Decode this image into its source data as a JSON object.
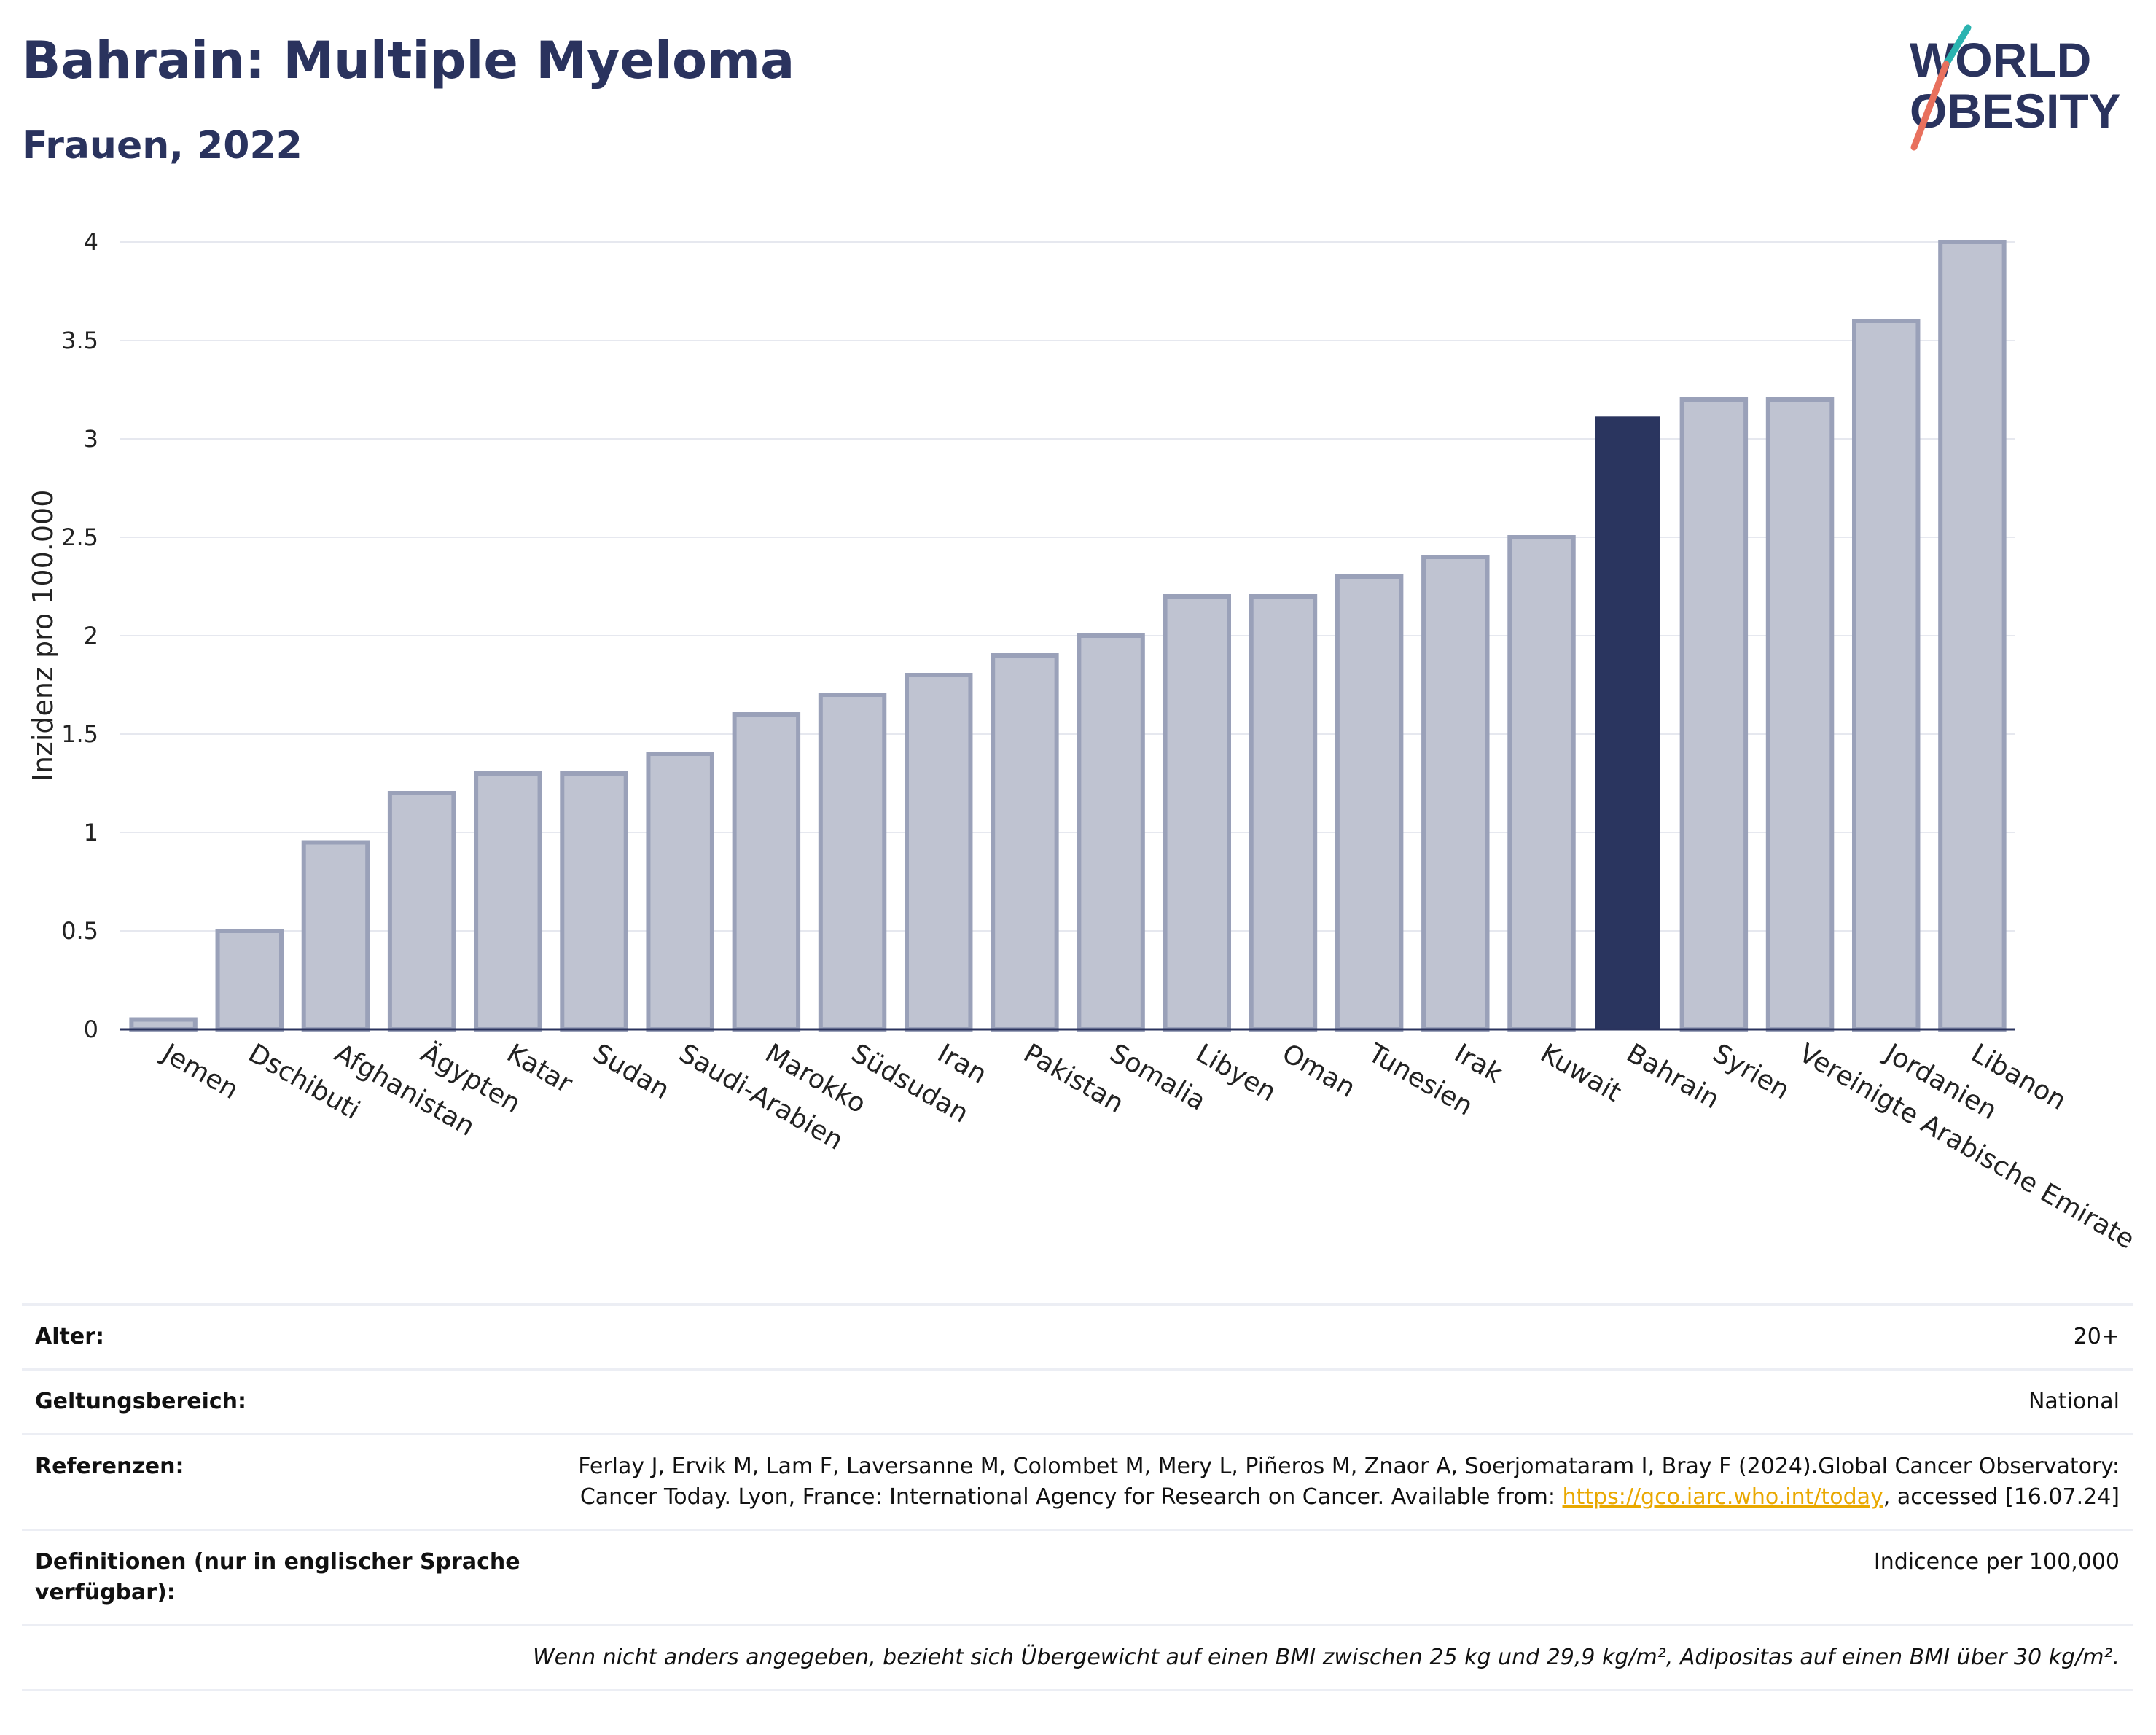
{
  "header": {
    "title": "Bahrain: Multiple Myeloma",
    "subtitle": "Frauen, 2022"
  },
  "logo": {
    "line1": "WORLD",
    "line2": "OBESITY"
  },
  "chart_data": {
    "type": "bar",
    "ylabel": "Inzidenz pro 100.000",
    "ylim": [
      0,
      4
    ],
    "yticks": [
      0,
      0.5,
      1,
      1.5,
      2,
      2.5,
      3,
      3.5,
      4
    ],
    "yticklabels": [
      "0",
      "0.5",
      "1",
      "1.5",
      "2",
      "2.5",
      "3",
      "3.5",
      "4"
    ],
    "grid": true,
    "categories": [
      "Jemen",
      "Dschibuti",
      "Afghanistan",
      "Ägypten",
      "Katar",
      "Sudan",
      "Saudi-Arabien",
      "Marokko",
      "Südsudan",
      "Iran",
      "Pakistan",
      "Somalia",
      "Libyen",
      "Oman",
      "Tunesien",
      "Irak",
      "Kuwait",
      "Bahrain",
      "Syrien",
      "Vereinigte Arabische Emirate",
      "Jordanien",
      "Libanon"
    ],
    "values": [
      0.05,
      0.5,
      0.95,
      1.2,
      1.3,
      1.3,
      1.4,
      1.6,
      1.7,
      1.8,
      1.9,
      2.0,
      2.2,
      2.2,
      2.3,
      2.4,
      2.5,
      3.11,
      3.2,
      3.2,
      3.6,
      4.0
    ],
    "highlight": "Bahrain",
    "colors": {
      "highlight": "#2a355f",
      "bar_fill": "#bfc3d1",
      "bar_stroke": "#9aa1b9",
      "grid": "#e6e8ef",
      "axis": "#2a335e"
    }
  },
  "info": {
    "rows": [
      {
        "label": "Alter:",
        "value": "20+"
      },
      {
        "label": "Geltungsbereich:",
        "value": "National"
      }
    ],
    "ref_label": "Referenzen:",
    "ref_text1": "Ferlay J, Ervik M, Lam F, Laversanne M, Colombet M, Mery L, Piñeros M, Znaor A, Soerjomataram I, Bray F (2024).Global Cancer Observatory: Cancer Today. Lyon, France: International Agency for Research on Cancer. Available from: ",
    "ref_link": "https://gco.iarc.who.int/today",
    "ref_text2": ", accessed [16.07.24]",
    "def_label": "Definitionen (nur in englischer Sprache verfügbar):",
    "def_value": "Indicence per 100,000",
    "footnote": "Wenn nicht anders angegeben, bezieht sich Übergewicht auf einen BMI zwischen 25 kg und 29,9 kg/m², Adipositas auf einen BMI über 30 kg/m²."
  }
}
